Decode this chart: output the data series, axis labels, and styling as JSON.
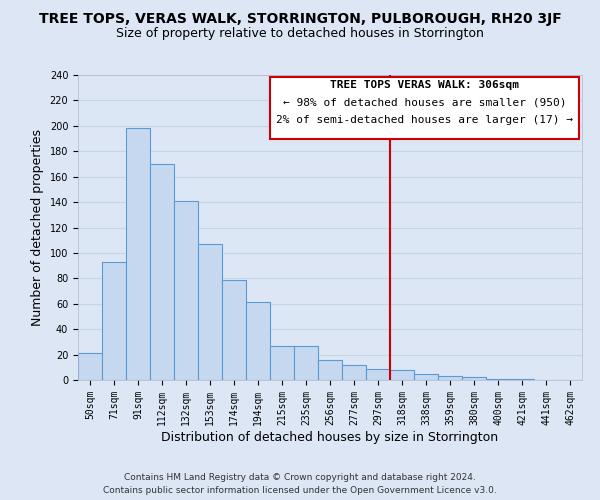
{
  "title": "TREE TOPS, VERAS WALK, STORRINGTON, PULBOROUGH, RH20 3JF",
  "subtitle": "Size of property relative to detached houses in Storrington",
  "xlabel": "Distribution of detached houses by size in Storrington",
  "ylabel": "Number of detached properties",
  "categories": [
    "50sqm",
    "71sqm",
    "91sqm",
    "112sqm",
    "132sqm",
    "153sqm",
    "174sqm",
    "194sqm",
    "215sqm",
    "235sqm",
    "256sqm",
    "277sqm",
    "297sqm",
    "318sqm",
    "338sqm",
    "359sqm",
    "380sqm",
    "400sqm",
    "421sqm",
    "441sqm",
    "462sqm"
  ],
  "values": [
    21,
    93,
    198,
    170,
    141,
    107,
    79,
    61,
    27,
    27,
    16,
    12,
    9,
    8,
    5,
    3,
    2,
    1,
    1,
    0,
    0
  ],
  "bar_color": "#c5d8f0",
  "bar_edge_color": "#5b9bd5",
  "grid_color": "#c8d4e8",
  "background_color": "#dce6f5",
  "vline_color": "#cc0000",
  "annotation_title": "TREE TOPS VERAS WALK: 306sqm",
  "annotation_line1": "← 98% of detached houses are smaller (950)",
  "annotation_line2": "2% of semi-detached houses are larger (17) →",
  "annotation_box_color": "#ffffff",
  "annotation_box_edge": "#cc0000",
  "ylim": [
    0,
    240
  ],
  "yticks": [
    0,
    20,
    40,
    60,
    80,
    100,
    120,
    140,
    160,
    180,
    200,
    220,
    240
  ],
  "footer_line1": "Contains HM Land Registry data © Crown copyright and database right 2024.",
  "footer_line2": "Contains public sector information licensed under the Open Government Licence v3.0.",
  "title_fontsize": 10,
  "subtitle_fontsize": 9,
  "axis_label_fontsize": 9,
  "tick_fontsize": 7,
  "footer_fontsize": 6.5,
  "annotation_fontsize": 8
}
